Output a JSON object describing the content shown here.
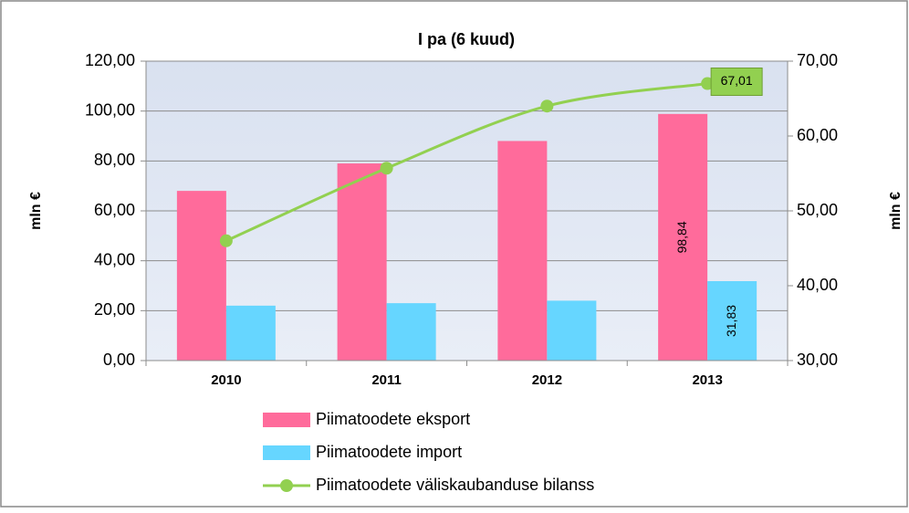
{
  "chart_data": {
    "type": "bar",
    "title": "I pa (6 kuud)",
    "ylabel": "mln €",
    "y2label": "mln €",
    "categories": [
      "2010",
      "2011",
      "2012",
      "2013"
    ],
    "series": [
      {
        "name": "Piimatoodete eksport",
        "color": "#ff6b9b",
        "values": [
          68.0,
          79.0,
          88.0,
          98.84
        ],
        "value_labels": [
          null,
          null,
          null,
          "98,84"
        ]
      },
      {
        "name": "Piimatoodete import",
        "color": "#66d6ff",
        "values": [
          22.0,
          23.0,
          24.0,
          31.83
        ],
        "value_labels": [
          null,
          null,
          null,
          "31,83"
        ]
      },
      {
        "name": "Piimatoodete väliskaubanduse bilanss",
        "color": "#92d050",
        "type": "line",
        "axis": "y2",
        "values": [
          46.0,
          55.7,
          64.0,
          67.01
        ],
        "value_labels": [
          null,
          null,
          null,
          "67,01"
        ]
      }
    ],
    "ylim": [
      0,
      120
    ],
    "yticks": [
      {
        "value": 0,
        "label": "0,00"
      },
      {
        "value": 20,
        "label": "20,00"
      },
      {
        "value": 40,
        "label": "40,00"
      },
      {
        "value": 60,
        "label": "60,00"
      },
      {
        "value": 80,
        "label": "80,00"
      },
      {
        "value": 100,
        "label": "100,00"
      },
      {
        "value": 120,
        "label": "120,00"
      }
    ],
    "y2lim": [
      30,
      70
    ],
    "y2ticks": [
      {
        "value": 30,
        "label": "30,00"
      },
      {
        "value": 40,
        "label": "40,00"
      },
      {
        "value": 50,
        "label": "50,00"
      },
      {
        "value": 60,
        "label": "60,00"
      },
      {
        "value": 70,
        "label": "70,00"
      }
    ],
    "grid": true,
    "legend": "bottom"
  }
}
